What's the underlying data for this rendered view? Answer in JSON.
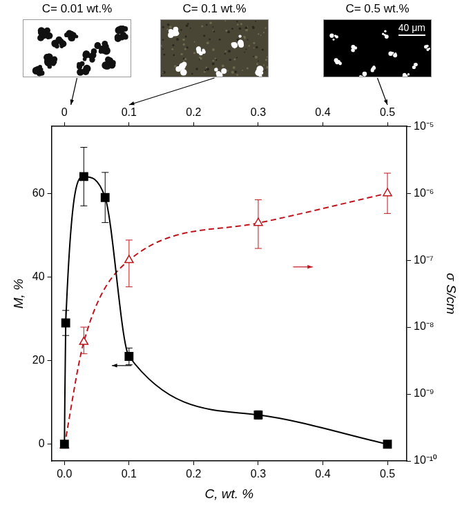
{
  "chart_data": {
    "type": "scatter",
    "x_label": "C, wt. %",
    "y_label": "M, %",
    "y2_label": "σ S/cm",
    "xlim": [
      -0.02,
      0.53
    ],
    "xticks": [
      {
        "value": 0,
        "label": "0.0"
      },
      0.1,
      0.2,
      0.3,
      0.4,
      0.5
    ],
    "x2ticks": [
      0,
      0.1,
      0.2,
      0.3,
      0.4,
      0.5
    ],
    "ylim": [
      -4,
      76
    ],
    "yticks": [
      0,
      20,
      40,
      60
    ],
    "y2lim": [
      1e-10,
      1e-05
    ],
    "y2ticks": [
      {
        "value": 1e-10,
        "label": "10⁻¹⁰"
      },
      {
        "value": 1e-09,
        "label": "10⁻⁹"
      },
      {
        "value": 1e-08,
        "label": "10⁻⁸"
      },
      {
        "value": 1e-07,
        "label": "10⁻⁷"
      },
      {
        "value": 1e-06,
        "label": "10⁻⁶"
      },
      {
        "value": 1e-05,
        "label": "10⁻⁵"
      }
    ],
    "log": "y2",
    "grid": false,
    "series": [
      {
        "color": "#000000",
        "marker": "square",
        "line_style": "solid",
        "x": [
          0,
          0.002,
          0.03,
          0.063,
          0.1,
          0.3,
          0.5
        ],
        "values": [
          0,
          29,
          64,
          59,
          21,
          7,
          0
        ],
        "error_bars": [
          null,
          [
            26,
            32
          ],
          [
            57,
            71
          ],
          [
            53,
            65
          ],
          [
            19,
            23
          ],
          [
            6,
            8
          ],
          null
        ]
      },
      {
        "color": "#c0141c",
        "marker": "open triangle",
        "line_style": "dashed",
        "axis": "y2",
        "x": [
          0,
          0.03,
          0.1,
          0.3,
          0.5
        ],
        "values": [
          1.7e-10,
          6e-09,
          1e-07,
          3.6e-07,
          1e-06
        ],
        "error_bars": [
          null,
          [
            4e-09,
            1e-08
          ],
          [
            4e-08,
            2e-07
          ],
          [
            1.5e-07,
            8e-07
          ],
          [
            5e-07,
            2e-06
          ]
        ]
      }
    ],
    "annotations": [
      {
        "text": "C= 0.01 wt.%",
        "x": 0.01
      },
      {
        "text": "C= 0.1 wt.%",
        "x": 0.1
      },
      {
        "text": "C= 0.5 wt.%",
        "x": 0.5,
        "scale_bar": "40 μm"
      }
    ]
  }
}
